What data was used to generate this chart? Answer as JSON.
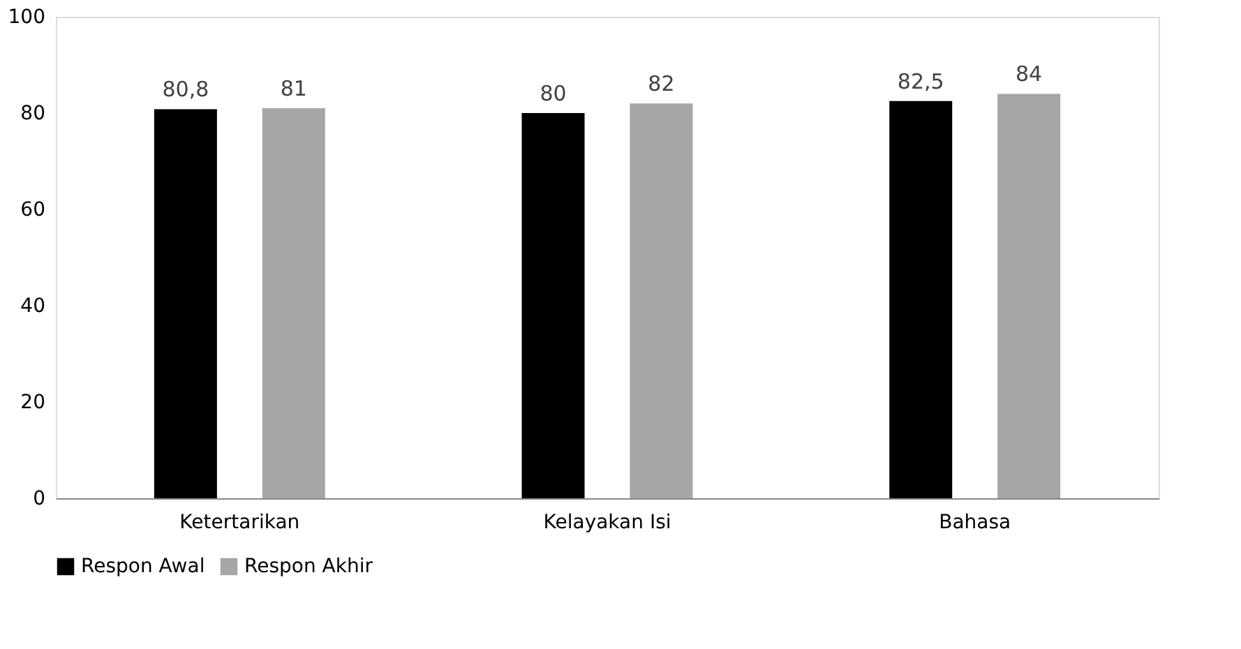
{
  "chart_data": {
    "type": "bar",
    "categories": [
      "Ketertarikan",
      "Kelayakan Isi",
      "Bahasa"
    ],
    "series": [
      {
        "name": "Respon Awal",
        "color": "#000000",
        "values": [
          80.8,
          80,
          82.5
        ],
        "value_labels": [
          "80,8",
          "80",
          "82,5"
        ]
      },
      {
        "name": "Respon Akhir",
        "color": "#a6a6a6",
        "values": [
          81,
          82,
          84
        ],
        "value_labels": [
          "81",
          "82",
          "84"
        ]
      }
    ],
    "ylim": [
      0,
      100
    ],
    "yticks": [
      0,
      20,
      40,
      60,
      80,
      100
    ],
    "grid": false,
    "legend": "bottom"
  }
}
